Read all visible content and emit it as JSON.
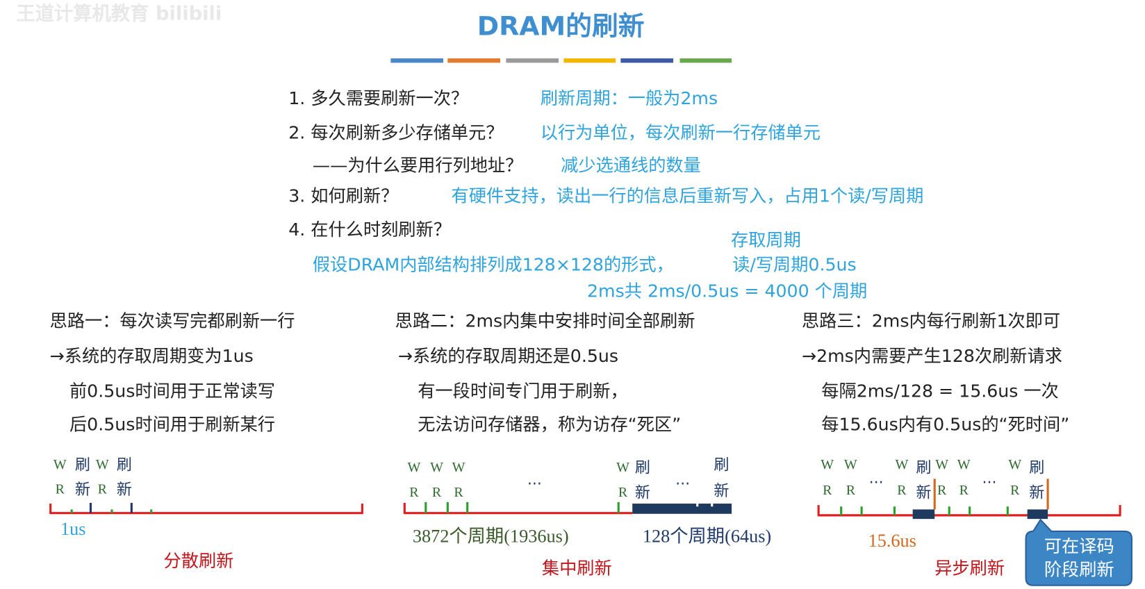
{
  "watermark": "王道计算机教育 bilibili",
  "title": "DRAM的刷新",
  "questions": [
    {
      "q": "1. 多久需要刷新一次？",
      "a": "刷新周期：一般为2ms"
    },
    {
      "q": "2. 每次刷新多少存储单元？",
      "a": "以行为单位，每次刷新一行存储单元"
    },
    {
      "q": "——为什么要用行列地址？",
      "a": "减少选通线的数量"
    },
    {
      "q": "3. 如何刷新？",
      "a": "有硬件支持，读出一行的信息后重新写入，占用1个读/写周期"
    },
    {
      "q": "4. 在什么时刻刷新？"
    }
  ],
  "assumption": {
    "label": "存取周期",
    "lines": [
      "假设DRAM内部结构排列成128×128的形式，",
      "读/写周期0.5us",
      "2ms共 2ms/0.5us = 4000 个周期"
    ]
  },
  "columns": [
    {
      "heading": "思路一：每次读写完都刷新一行",
      "lines": [
        "→系统的存取周期变为1us",
        "前0.5us时间用于正常读写",
        "后0.5us时间用于刷新某行"
      ],
      "labels": [
        "W",
        "刷",
        "W",
        "刷",
        "R",
        "新",
        "R",
        "新"
      ],
      "notes": [
        "1us",
        "分散刷新"
      ]
    },
    {
      "heading": "思路二：2ms内集中安排时间全部刷新",
      "lines": [
        "→系统的存取周期还是0.5us",
        "有一段时间专门用于刷新，",
        "无法访问存储器，称为访存“死区”"
      ],
      "labels": [
        "W",
        "W",
        "W",
        "R",
        "R",
        "R",
        "...",
        "W",
        "刷",
        "R",
        "新",
        "...",
        "刷",
        "新"
      ],
      "notes": [
        "3872个周期(1936us)",
        "128个周期(64us)",
        "集中刷新"
      ]
    },
    {
      "heading": "思路三：2ms内每行刷新1次即可",
      "lines": [
        "→2ms内需要产生128次刷新请求",
        "每隔2ms/128 = 15.6us 一次",
        "每15.6us内有0.5us的“死时间”"
      ],
      "labels": [
        "W",
        "W",
        "...",
        "W",
        "刷",
        "W",
        "W",
        "...",
        "W",
        "刷",
        "R",
        "R",
        "R",
        "新",
        "R",
        "R",
        "R",
        "新"
      ],
      "notes": [
        "15.6us",
        "异步刷新"
      ]
    }
  ],
  "callout": [
    "可在译码",
    "阶段刷新"
  ]
}
